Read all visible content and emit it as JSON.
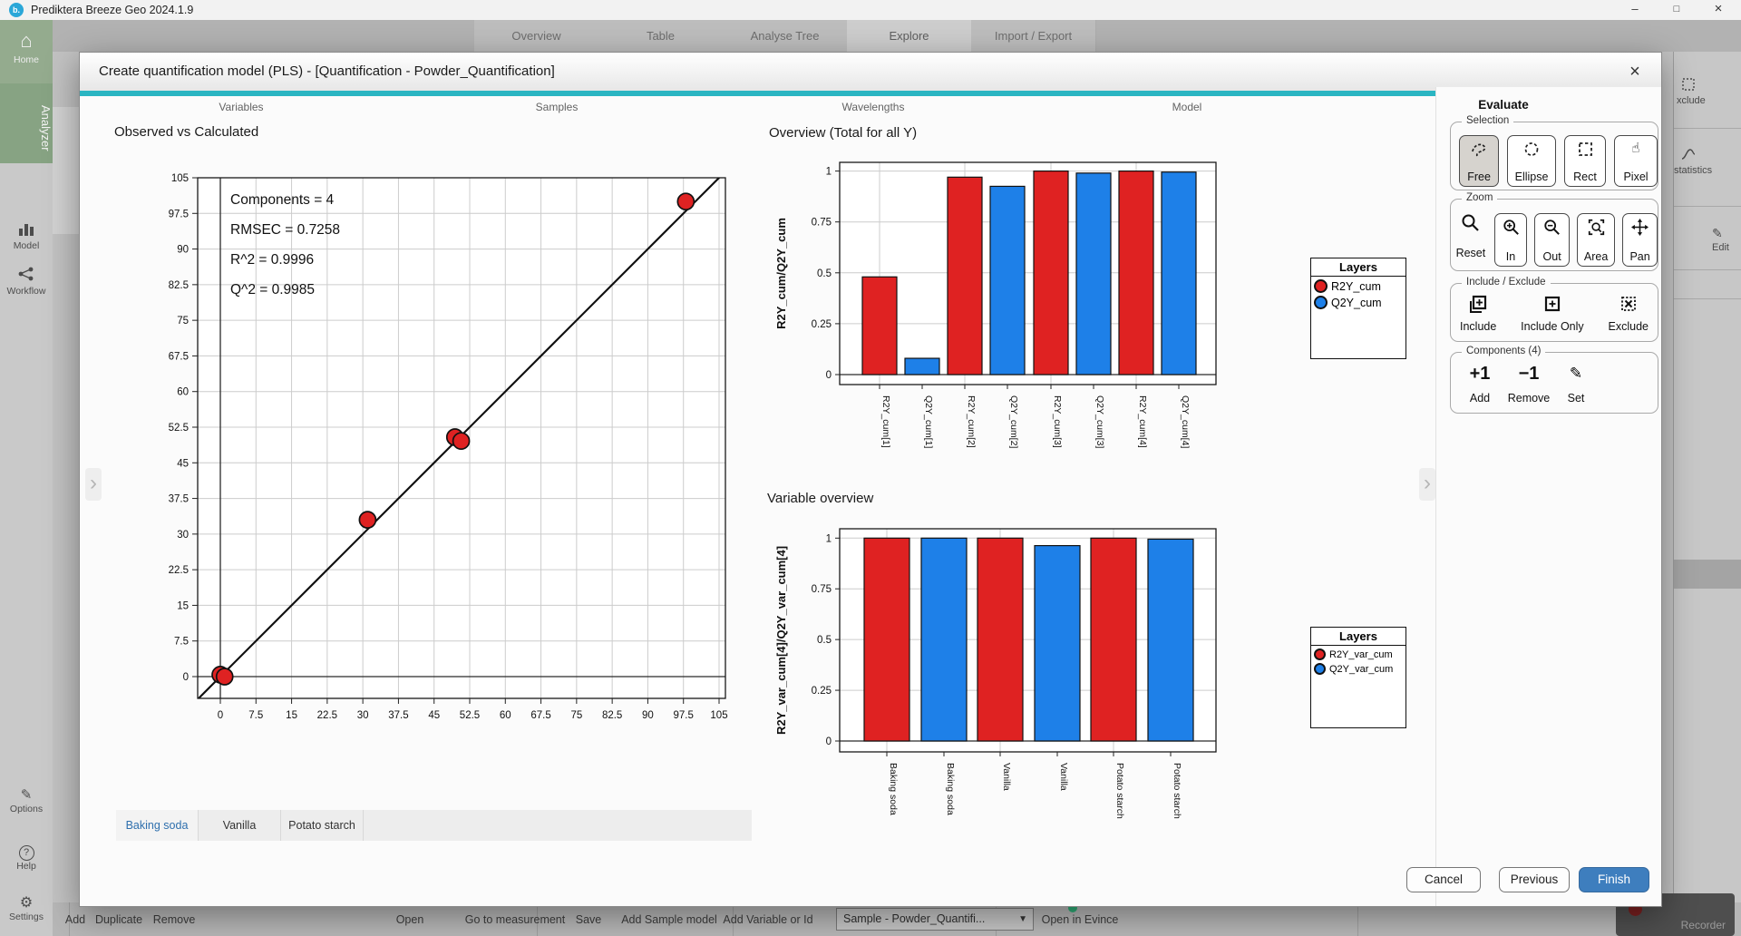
{
  "window": {
    "title": "Prediktera Breeze Geo 2024.1.9"
  },
  "toolbar": {
    "tabs": [
      "Overview",
      "Table",
      "Analyse Tree",
      "Explore",
      "Import / Export"
    ],
    "active_tab": "Explore"
  },
  "sidebar": {
    "home": "Home",
    "analyzer": "Analyzer",
    "model": "Model",
    "workflow": "Workflow",
    "options": "Options",
    "help": "Help",
    "settings": "Settings"
  },
  "right_strip": {
    "item1": "xclude",
    "item2": "statistics",
    "item3": "Edit"
  },
  "bottom_bar": {
    "add": "Add",
    "duplicate": "Duplicate",
    "remove": "Remove",
    "open": "Open",
    "go_to_measurement": "Go to measurement",
    "save": "Save",
    "add_sample_model": "Add Sample model",
    "add_variable": "Add Variable or Id",
    "sample_dropdown": "Sample - Powder_Quantifi...",
    "open_in_evince": "Open in Evince",
    "recorder": "Recorder"
  },
  "dialog": {
    "title": "Create quantification model (PLS) - [Quantification - Powder_Quantification]",
    "accent_color": "#2ab5c2",
    "steps": [
      "Variables",
      "Samples",
      "Wavelengths",
      "Model",
      "Evaluate"
    ],
    "active_step": "Evaluate",
    "sample_tabs": [
      "Baking soda",
      "Vanilla",
      "Potato starch"
    ],
    "active_sample_tab": "Baking soda",
    "evaluate": {
      "title": "Evaluate",
      "selection": {
        "label": "Selection",
        "free": "Free",
        "ellipse": "Ellipse",
        "rect": "Rect",
        "pixel": "Pixel"
      },
      "zoom": {
        "label": "Zoom",
        "reset": "Reset",
        "in": "In",
        "out": "Out",
        "area": "Area",
        "pan": "Pan"
      },
      "include_exclude": {
        "label": "Include / Exclude",
        "include": "Include",
        "include_only": "Include Only",
        "exclude": "Exclude"
      },
      "components": {
        "label": "Components (4)",
        "add_symbol": "+1",
        "add": "Add",
        "remove_symbol": "−1",
        "remove": "Remove",
        "set": "Set"
      }
    },
    "footer": {
      "cancel": "Cancel",
      "previous": "Previous",
      "finish": "Finish",
      "finish_color": "#3e7ebe"
    }
  },
  "chart_data": [
    {
      "type": "scatter",
      "title": "Observed vs Calculated",
      "annotations": [
        "Components = 4",
        "RMSEC = 0.7258",
        "R^2 = 0.9996",
        "Q^2 = 0.9985"
      ],
      "xticks": [
        0,
        7.5,
        15,
        22.5,
        30,
        37.5,
        45,
        52.5,
        60,
        67.5,
        75,
        82.5,
        90,
        97.5,
        105
      ],
      "yticks": [
        0,
        7.5,
        15,
        22.5,
        30,
        37.5,
        45,
        52.5,
        60,
        67.5,
        75,
        82.5,
        90,
        97.5,
        105
      ],
      "xlim": [
        -4.8,
        107
      ],
      "ylim": [
        -4.8,
        105
      ],
      "points": [
        [
          0,
          0.4
        ],
        [
          0.9,
          0
        ],
        [
          31,
          33
        ],
        [
          49.4,
          50.4
        ],
        [
          50.7,
          49.6
        ],
        [
          98,
          100
        ]
      ],
      "identity_line": true,
      "grid": true,
      "point_color": "#df2222"
    },
    {
      "type": "bar",
      "title": "Overview (Total for all Y)",
      "ylabel": "R2Y_cum/Q2Y_cum",
      "categories": [
        "R2Y_cum[1]",
        "Q2Y_cum[1]",
        "R2Y_cum[2]",
        "Q2Y_cum[2]",
        "R2Y_cum[3]",
        "Q2Y_cum[3]",
        "R2Y_cum[4]",
        "Q2Y_cum[4]"
      ],
      "values": [
        0.48,
        0.08,
        0.97,
        0.925,
        1.0,
        0.99,
        1.0,
        0.995
      ],
      "bar_colors": [
        "#df2222",
        "#1e80e8",
        "#df2222",
        "#1e80e8",
        "#df2222",
        "#1e80e8",
        "#df2222",
        "#1e80e8"
      ],
      "yticks": [
        0,
        0.25,
        0.5,
        0.75,
        1
      ],
      "ylim": [
        0,
        1.09
      ],
      "grid": true,
      "legend": {
        "title": "Layers",
        "position": "right",
        "entries": [
          {
            "label": "R2Y_cum",
            "color": "#df2222"
          },
          {
            "label": "Q2Y_cum",
            "color": "#1e80e8"
          }
        ]
      }
    },
    {
      "type": "bar",
      "title": "Variable overview",
      "ylabel": "R2Y_var_cum[4]/Q2Y_var_cum[4]",
      "categories": [
        "Baking soda",
        "Baking soda",
        "Vanilla",
        "Vanilla",
        "Potato starch",
        "Potato starch"
      ],
      "values": [
        1.0,
        1.0,
        1.0,
        0.963,
        1.0,
        0.995
      ],
      "bar_colors": [
        "#df2222",
        "#1e80e8",
        "#df2222",
        "#1e80e8",
        "#df2222",
        "#1e80e8"
      ],
      "yticks": [
        0,
        0.25,
        0.5,
        0.75,
        1
      ],
      "ylim": [
        0,
        1.09
      ],
      "grid": true,
      "legend": {
        "title": "Layers",
        "position": "right",
        "entries": [
          {
            "label": "R2Y_var_cum",
            "color": "#df2222"
          },
          {
            "label": "Q2Y_var_cum",
            "color": "#1e80e8"
          }
        ]
      }
    }
  ]
}
